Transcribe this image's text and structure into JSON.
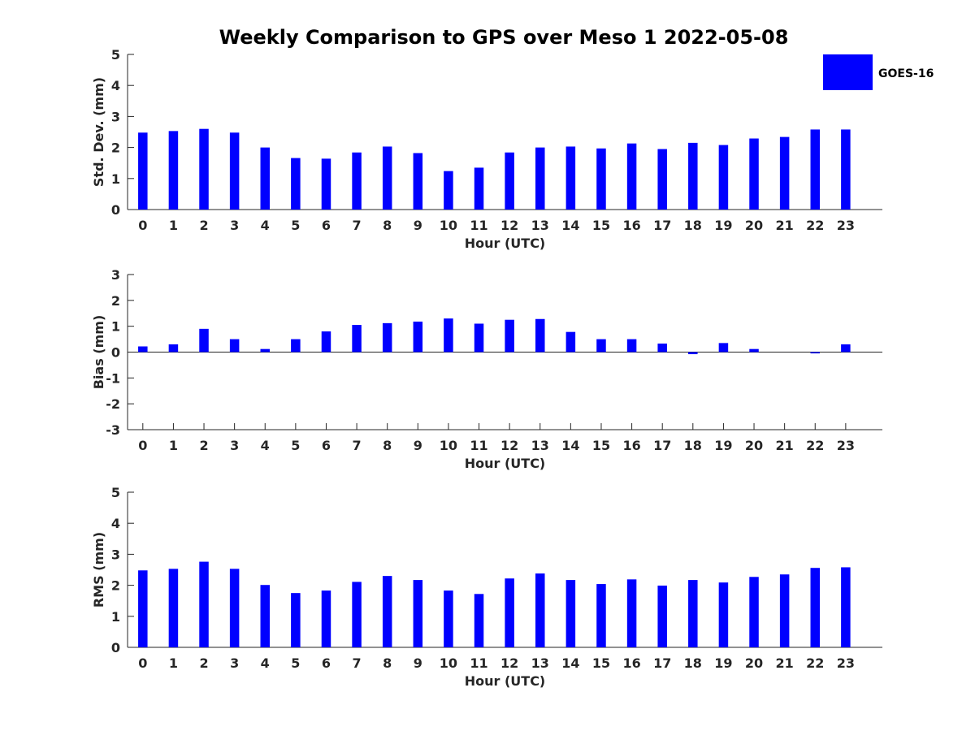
{
  "title": "Weekly Comparison to GPS over Meso 1 2022-05-08",
  "legend": {
    "label": "GOES-16",
    "color": "#0000ff"
  },
  "chart_data": [
    {
      "type": "bar",
      "categories": [
        "0",
        "1",
        "2",
        "3",
        "4",
        "5",
        "6",
        "7",
        "8",
        "9",
        "10",
        "11",
        "12",
        "13",
        "14",
        "15",
        "16",
        "17",
        "18",
        "19",
        "20",
        "21",
        "22",
        "23"
      ],
      "series": [
        {
          "name": "GOES-16",
          "values": [
            2.48,
            2.53,
            2.6,
            2.48,
            2.0,
            1.66,
            1.64,
            1.84,
            2.03,
            1.82,
            1.24,
            1.35,
            1.84,
            2.0,
            2.03,
            1.97,
            2.13,
            1.95,
            2.15,
            2.08,
            2.29,
            2.34,
            2.58,
            2.58
          ]
        }
      ],
      "xlabel": "Hour (UTC)",
      "ylabel": "Std. Dev. (mm)",
      "ylim": [
        0,
        5
      ],
      "yticks": [
        "0",
        "1",
        "2",
        "3",
        "4",
        "5"
      ],
      "color": "#0000ff"
    },
    {
      "type": "bar",
      "categories": [
        "0",
        "1",
        "2",
        "3",
        "4",
        "5",
        "6",
        "7",
        "8",
        "9",
        "10",
        "11",
        "12",
        "13",
        "14",
        "15",
        "16",
        "17",
        "18",
        "19",
        "20",
        "21",
        "22",
        "23"
      ],
      "series": [
        {
          "name": "GOES-16",
          "values": [
            0.22,
            0.3,
            0.9,
            0.5,
            0.12,
            0.5,
            0.8,
            1.05,
            1.12,
            1.18,
            1.3,
            1.1,
            1.25,
            1.28,
            0.78,
            0.5,
            0.5,
            0.33,
            -0.08,
            0.35,
            0.12,
            0.0,
            -0.05,
            0.3
          ]
        }
      ],
      "xlabel": "Hour (UTC)",
      "ylabel": "Bias (mm)",
      "ylim": [
        -3,
        3
      ],
      "yticks": [
        "-3",
        "-2",
        "-1",
        "0",
        "1",
        "2",
        "3"
      ],
      "color": "#0000ff"
    },
    {
      "type": "bar",
      "categories": [
        "0",
        "1",
        "2",
        "3",
        "4",
        "5",
        "6",
        "7",
        "8",
        "9",
        "10",
        "11",
        "12",
        "13",
        "14",
        "15",
        "16",
        "17",
        "18",
        "19",
        "20",
        "21",
        "22",
        "23"
      ],
      "series": [
        {
          "name": "GOES-16",
          "values": [
            2.48,
            2.53,
            2.76,
            2.53,
            2.01,
            1.75,
            1.83,
            2.11,
            2.3,
            2.17,
            1.83,
            1.72,
            2.22,
            2.38,
            2.17,
            2.04,
            2.19,
            1.99,
            2.17,
            2.09,
            2.27,
            2.35,
            2.56,
            2.58
          ]
        }
      ],
      "xlabel": "Hour (UTC)",
      "ylabel": "RMS (mm)",
      "ylim": [
        0,
        5
      ],
      "yticks": [
        "0",
        "1",
        "2",
        "3",
        "4",
        "5"
      ],
      "color": "#0000ff"
    }
  ]
}
